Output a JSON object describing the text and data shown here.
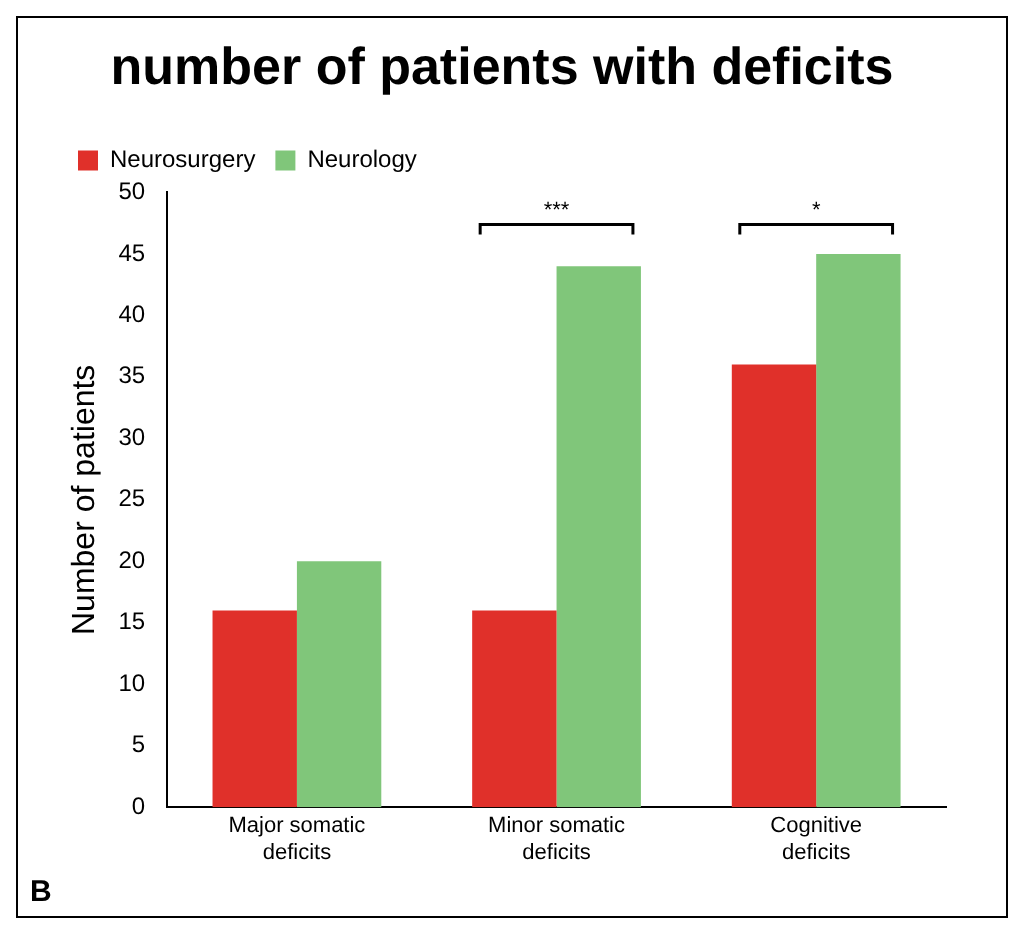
{
  "chart_data": {
    "type": "bar",
    "title": "number of patients with deficits",
    "ylabel": "Number of patients",
    "categories": [
      "Major somatic deficits",
      "Minor somatic deficits",
      "Cognitive deficits"
    ],
    "series": [
      {
        "name": "Neurosurgery",
        "color": "#e0302a",
        "values": [
          16,
          16,
          36
        ]
      },
      {
        "name": "Neurology",
        "color": "#80c67a",
        "values": [
          20,
          44,
          45
        ]
      }
    ],
    "ylim": [
      0,
      50
    ],
    "yticks": [
      0,
      5,
      10,
      15,
      20,
      25,
      30,
      35,
      40,
      45,
      50
    ],
    "grid": false,
    "legend": "top left",
    "annotations": [
      "***",
      "*",
      "B"
    ]
  }
}
